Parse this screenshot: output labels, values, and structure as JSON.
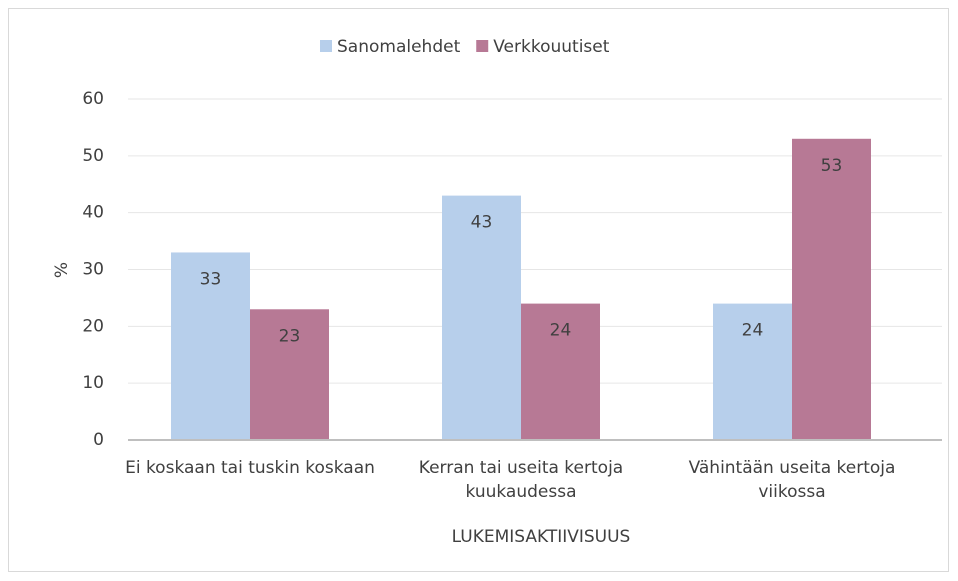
{
  "chart_data": {
    "type": "bar",
    "categories": [
      "Ei koskaan tai tuskin koskaan",
      "Kerran tai useita kertoja kuukaudessa",
      "Vähintään useita kertoja viikossa"
    ],
    "series": [
      {
        "name": "Sanomalehdet",
        "color": "#b7cfeb",
        "values": [
          33,
          43,
          24
        ]
      },
      {
        "name": "Verkkouutiset",
        "color": "#b77995",
        "values": [
          23,
          24,
          53
        ]
      }
    ],
    "ylabel": "%",
    "xlabel": "LUKEMISAKTIIVISUUS",
    "ylim": [
      0,
      60
    ],
    "yticks": [
      0,
      10,
      20,
      30,
      40,
      50,
      60
    ],
    "grid": true,
    "legend": "top"
  }
}
